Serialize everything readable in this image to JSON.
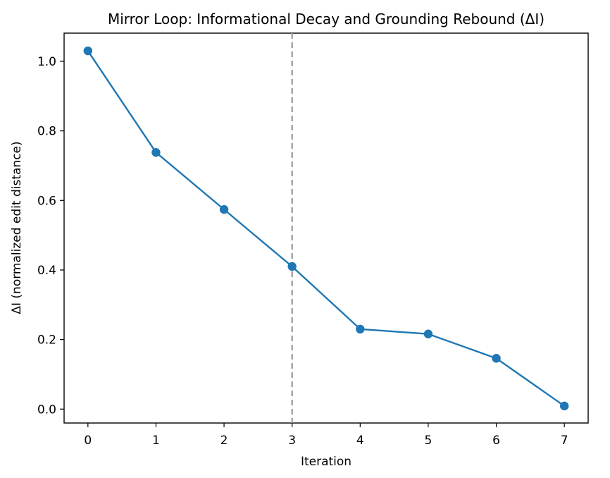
{
  "chart_data": {
    "type": "line",
    "title": "Mirror Loop: Informational Decay and Grounding Rebound (ΔI)",
    "xlabel": "Iteration",
    "ylabel": "ΔI (normalized edit distance)",
    "x": [
      0,
      1,
      2,
      3,
      4,
      5,
      6,
      7
    ],
    "series": [
      {
        "values": [
          1.03,
          0.738,
          0.574,
          0.41,
          0.23,
          0.216,
          0.146,
          0.009
        ]
      }
    ],
    "xlim": [
      -0.35,
      7.35
    ],
    "ylim": [
      -0.04,
      1.081
    ],
    "xticks": [
      "0",
      "1",
      "2",
      "3",
      "4",
      "5",
      "6",
      "7"
    ],
    "yticks": [
      "0.0",
      "0.2",
      "0.4",
      "0.6",
      "0.8",
      "1.0"
    ],
    "vline_x": 3,
    "grid": false,
    "colors": {
      "line": "#1f77b4",
      "vline": "#999999",
      "axes": "#000000"
    }
  }
}
